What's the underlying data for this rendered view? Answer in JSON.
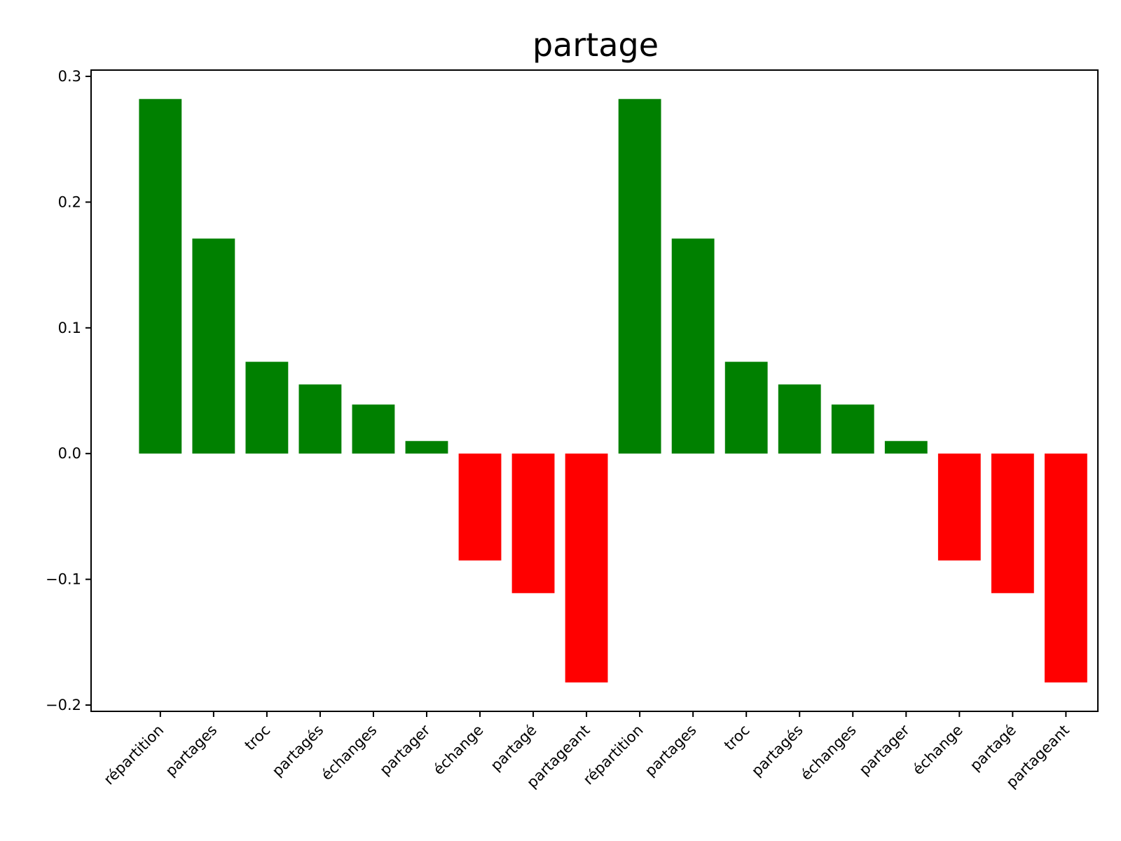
{
  "chart_data": {
    "type": "bar",
    "title": "partage",
    "xlabel": "",
    "ylabel": "",
    "categories": [
      "répartition",
      "partages",
      "troc",
      "partagés",
      "échanges",
      "partager",
      "échange",
      "partagé",
      "partageant",
      "répartition",
      "partages",
      "troc",
      "partagés",
      "échanges",
      "partager",
      "échange",
      "partagé",
      "partageant"
    ],
    "values": [
      0.282,
      0.171,
      0.073,
      0.055,
      0.039,
      0.01,
      -0.085,
      -0.111,
      -0.182,
      0.282,
      0.171,
      0.073,
      0.055,
      0.039,
      0.01,
      -0.085,
      -0.111,
      -0.182
    ],
    "ylim": [
      -0.205,
      0.305
    ],
    "yticks": [
      -0.2,
      -0.1,
      0.0,
      0.1,
      0.2,
      0.3
    ],
    "ytick_labels": [
      "−0.2",
      "−0.1",
      "0.0",
      "0.1",
      "0.2",
      "0.3"
    ],
    "grid": false,
    "colors": {
      "positive": "#008000",
      "negative": "#ff0000"
    }
  }
}
